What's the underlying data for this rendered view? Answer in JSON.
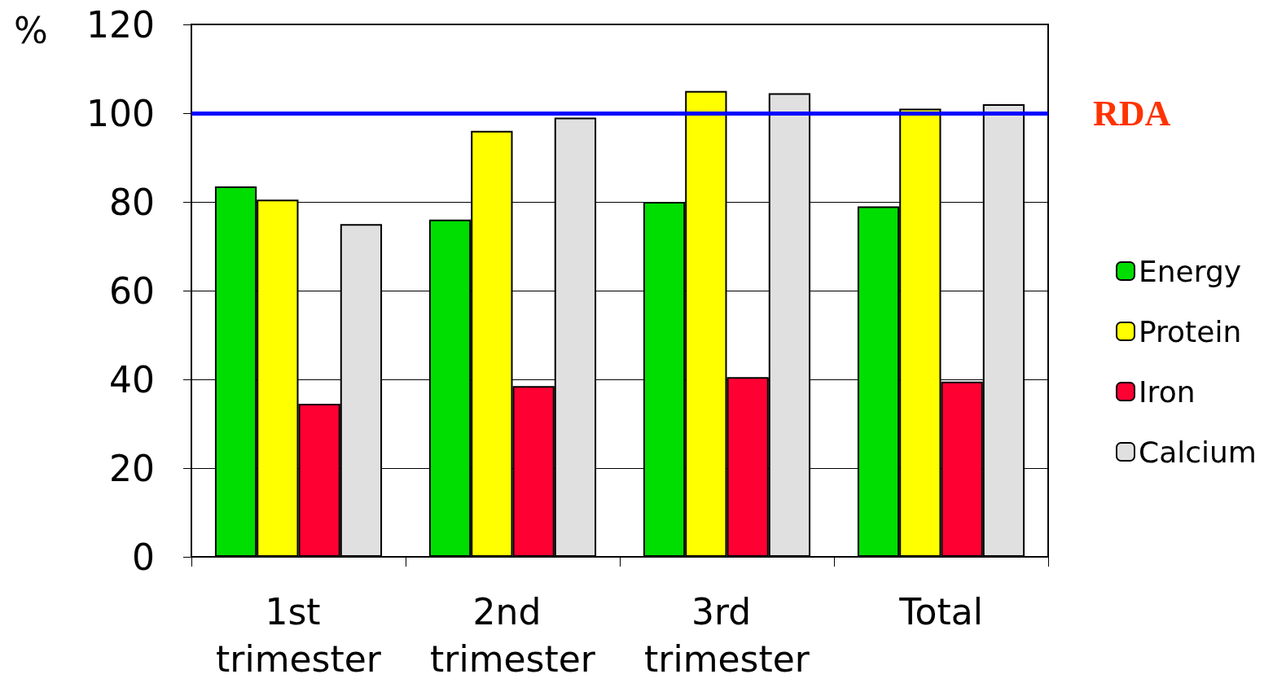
{
  "chart_data": {
    "type": "bar",
    "ylabel": "%",
    "categories": [
      "1st trimester",
      "2nd trimester",
      "3rd trimester",
      "Total"
    ],
    "series": [
      {
        "name": "Energy",
        "color": "#00dd00",
        "values": [
          83.5,
          76,
          80,
          79
        ]
      },
      {
        "name": "Protein",
        "color": "#ffff00",
        "values": [
          80.5,
          96,
          105,
          101
        ]
      },
      {
        "name": "Iron",
        "color": "#ff0033",
        "values": [
          34.5,
          38.5,
          40.5,
          39.5
        ]
      },
      {
        "name": "Calcium",
        "color": "#e0e0e0",
        "values": [
          75,
          99,
          104.5,
          102
        ]
      }
    ],
    "ylim": [
      0,
      120
    ],
    "yticks": [
      0,
      20,
      40,
      60,
      80,
      100,
      120
    ],
    "grid": "y",
    "legend": "right",
    "ref_lines": [
      {
        "axis": "y",
        "value": 100,
        "label": "RDA",
        "color": "#0000ff"
      }
    ]
  }
}
